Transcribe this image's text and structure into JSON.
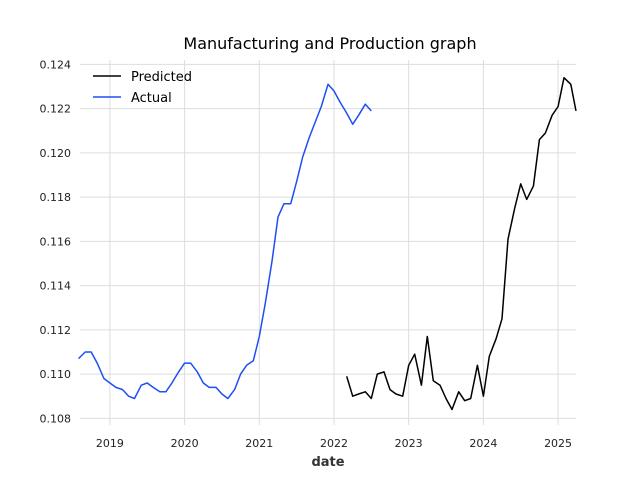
{
  "chart_data": {
    "type": "line",
    "title": "Manufacturing and Production graph",
    "xlabel": "date",
    "ylabel": "",
    "xlim": [
      2018.6,
      2025.24
    ],
    "ylim": [
      0.1077,
      0.1242
    ],
    "grid": true,
    "legend_position": "top-left",
    "x_ticks": [
      {
        "value": 2019,
        "label": "2019"
      },
      {
        "value": 2020,
        "label": "2020"
      },
      {
        "value": 2021,
        "label": "2021"
      },
      {
        "value": 2022,
        "label": "2022"
      },
      {
        "value": 2023,
        "label": "2023"
      },
      {
        "value": 2024,
        "label": "2024"
      },
      {
        "value": 2025,
        "label": "2025"
      }
    ],
    "y_ticks": [
      {
        "value": 0.108,
        "label": "0.108"
      },
      {
        "value": 0.11,
        "label": "0.110"
      },
      {
        "value": 0.112,
        "label": "0.112"
      },
      {
        "value": 0.114,
        "label": "0.114"
      },
      {
        "value": 0.116,
        "label": "0.116"
      },
      {
        "value": 0.118,
        "label": "0.118"
      },
      {
        "value": 0.12,
        "label": "0.120"
      },
      {
        "value": 0.122,
        "label": "0.122"
      },
      {
        "value": 0.124,
        "label": "0.124"
      }
    ],
    "series": [
      {
        "name": "Predicted",
        "color": "#000000",
        "x": [
          2022.17,
          2022.25,
          2022.33,
          2022.42,
          2022.5,
          2022.58,
          2022.67,
          2022.75,
          2022.83,
          2022.92,
          2023.0,
          2023.08,
          2023.17,
          2023.25,
          2023.33,
          2023.42,
          2023.5,
          2023.58,
          2023.67,
          2023.75,
          2023.83,
          2023.92,
          2024.0,
          2024.08,
          2024.17,
          2024.25,
          2024.33,
          2024.42,
          2024.5,
          2024.58,
          2024.67,
          2024.75,
          2024.83,
          2024.92,
          2025.0,
          2025.08,
          2025.17,
          2025.24
        ],
        "y": [
          0.1099,
          0.109,
          0.1091,
          0.1092,
          0.1089,
          0.11,
          0.1101,
          0.1093,
          0.1091,
          0.109,
          0.1104,
          0.1109,
          0.1095,
          0.1117,
          0.1097,
          0.1095,
          0.1089,
          0.1084,
          0.1092,
          0.1088,
          0.1089,
          0.1104,
          0.109,
          0.1108,
          0.1116,
          0.1125,
          0.1161,
          0.1175,
          0.1186,
          0.1179,
          0.1185,
          0.1206,
          0.1209,
          0.1217,
          0.1221,
          0.1234,
          0.1231,
          0.1219
        ]
      },
      {
        "name": "Actual",
        "color": "#1f4ef5",
        "x": [
          2018.58,
          2018.67,
          2018.75,
          2018.83,
          2018.92,
          2019.0,
          2019.08,
          2019.17,
          2019.25,
          2019.33,
          2019.42,
          2019.5,
          2019.58,
          2019.67,
          2019.75,
          2019.83,
          2019.92,
          2020.0,
          2020.08,
          2020.17,
          2020.25,
          2020.33,
          2020.42,
          2020.5,
          2020.58,
          2020.67,
          2020.75,
          2020.83,
          2020.92,
          2021.0,
          2021.08,
          2021.17,
          2021.25,
          2021.33,
          2021.42,
          2021.5,
          2021.58,
          2021.67,
          2021.75,
          2021.83,
          2021.92,
          2022.0,
          2022.08,
          2022.17,
          2022.25,
          2022.33,
          2022.42,
          2022.5
        ],
        "y": [
          0.1107,
          0.111,
          0.111,
          0.1105,
          0.1098,
          0.1096,
          0.1094,
          0.1093,
          0.109,
          0.1089,
          0.1095,
          0.1096,
          0.1094,
          0.1092,
          0.1092,
          0.1096,
          0.1101,
          0.1105,
          0.1105,
          0.1101,
          0.1096,
          0.1094,
          0.1094,
          0.1091,
          0.1089,
          0.1093,
          0.11,
          0.1104,
          0.1106,
          0.1117,
          0.1132,
          0.1151,
          0.1171,
          0.1177,
          0.1177,
          0.1187,
          0.1198,
          0.1207,
          0.1214,
          0.1221,
          0.1231,
          0.1228,
          0.1223,
          0.1218,
          0.1213,
          0.1217,
          0.1222,
          0.1219
        ]
      }
    ]
  }
}
